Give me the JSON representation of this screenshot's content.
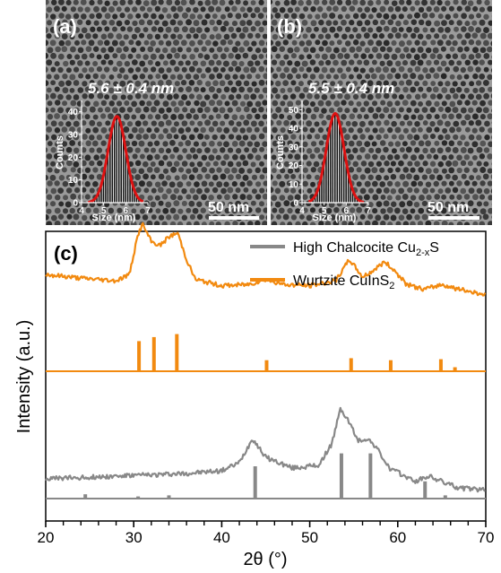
{
  "panels": {
    "a": {
      "label": "(a)",
      "size_text": "5.6 ± 0.4 nm",
      "scale_bar": "50 nm",
      "inset": {
        "ylabel": "Counts",
        "xlabel": "Size (nm)",
        "x_ticks": [
          "4",
          "5",
          "6",
          "7"
        ],
        "y_ticks": [
          "0",
          "10",
          "20",
          "30",
          "40"
        ],
        "mean": 5.6,
        "sd": 0.4,
        "peak_count": 38,
        "xlim": [
          4,
          7
        ],
        "ylim": [
          0,
          45
        ],
        "fit_color": "#dd1111"
      }
    },
    "b": {
      "label": "(b)",
      "size_text": "5.5 ± 0.4 nm",
      "scale_bar": "50 nm",
      "inset": {
        "ylabel": "Counts",
        "xlabel": "Size (nm)",
        "x_ticks": [
          "4",
          "5",
          "6",
          "7"
        ],
        "y_ticks": [
          "0",
          "10",
          "20",
          "30",
          "40",
          "50"
        ],
        "mean": 5.5,
        "sd": 0.4,
        "peak_count": 48,
        "xlim": [
          4,
          7
        ],
        "ylim": [
          0,
          55
        ],
        "fit_color": "#dd1111"
      }
    }
  },
  "chart_data": {
    "type": "line",
    "panel_label": "(c)",
    "xlabel": "2θ (°)",
    "ylabel": "Intensity (a.u.)",
    "xlim": [
      20,
      70
    ],
    "x_ticks": [
      "20",
      "30",
      "40",
      "50",
      "60",
      "70"
    ],
    "legend_position": "top-right",
    "series": [
      {
        "name": "High Chalcocite Cu2-xS",
        "legend_main": "High Chalcocite Cu",
        "legend_sub": "2-x",
        "legend_tail": "S",
        "color": "#888888",
        "x": [
          20,
          24,
          28,
          32,
          36,
          40,
          42,
          43.5,
          45,
          48,
          51,
          52.5,
          53.5,
          54.5,
          55.5,
          56.5,
          57.5,
          59,
          62,
          63.5,
          65,
          67,
          70
        ],
        "y": [
          0.14,
          0.15,
          0.16,
          0.17,
          0.18,
          0.2,
          0.26,
          0.44,
          0.3,
          0.22,
          0.24,
          0.4,
          0.66,
          0.56,
          0.42,
          0.44,
          0.38,
          0.22,
          0.12,
          0.16,
          0.12,
          0.07,
          0.06
        ],
        "reference_peaks": {
          "x": [
            24.5,
            30.5,
            34,
            43.8,
            53.6,
            56.9,
            63.1,
            65.4
          ],
          "h": [
            0.04,
            0.02,
            0.03,
            0.3,
            0.42,
            0.42,
            0.16,
            0.03
          ]
        }
      },
      {
        "name": "Wurtzite CuInS2",
        "legend_main": "Wurtzite CuInS",
        "legend_sub": "2",
        "legend_tail": "",
        "color": "#f28a10",
        "x": [
          20,
          24,
          28,
          29.5,
          30.5,
          31,
          32,
          33,
          34,
          35,
          36,
          37,
          40,
          43,
          45,
          47,
          50,
          53,
          54.5,
          56,
          57,
          58.5,
          59.5,
          61,
          63,
          65,
          67,
          70
        ],
        "y": [
          0.6,
          0.57,
          0.55,
          0.6,
          0.92,
          1.0,
          0.86,
          0.83,
          0.9,
          0.93,
          0.72,
          0.56,
          0.51,
          0.52,
          0.56,
          0.52,
          0.51,
          0.55,
          0.72,
          0.58,
          0.62,
          0.7,
          0.64,
          0.52,
          0.48,
          0.52,
          0.48,
          0.44
        ],
        "reference_peaks": {
          "x": [
            30.6,
            32.3,
            34.9,
            45.1,
            54.7,
            59.2,
            64.9,
            66.5
          ],
          "h": [
            0.3,
            0.34,
            0.37,
            0.11,
            0.13,
            0.11,
            0.12,
            0.04
          ]
        }
      }
    ]
  }
}
